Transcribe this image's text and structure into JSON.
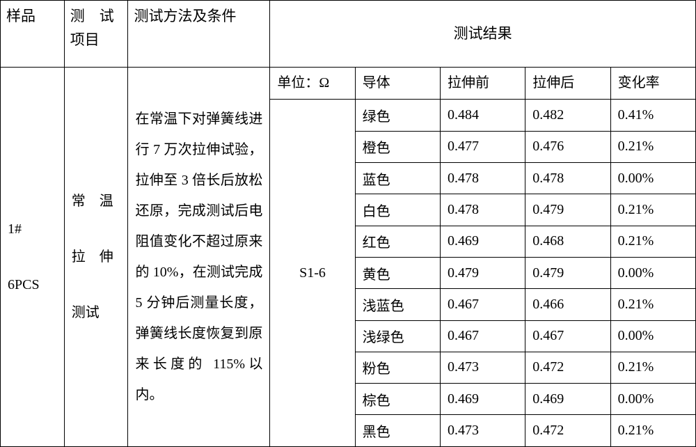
{
  "colors": {
    "border": "#000000",
    "background": "#ffffff",
    "text": "#000000"
  },
  "font": {
    "family": "SimSun",
    "header_size_pt": 16,
    "body_size_pt": 15
  },
  "headers": {
    "sample": "样品",
    "test_item": "测　试项目",
    "method": "测试方法及条件",
    "result": "测试结果"
  },
  "sample": {
    "id": "1#",
    "qty": "6PCS"
  },
  "test_item": {
    "line1": "常　温",
    "line2": "拉　伸",
    "line3": "测试"
  },
  "method_text": "在常温下对弹簧线进行 7 万次拉伸试验，拉伸至 3 倍长后放松还原，完成测试后电阻值变化不超过原来的 10%，在测试完成 5 分钟后测量长度，弹簧线长度恢复到原来长度的 115%以内。",
  "result_subheaders": {
    "unit": "单位：Ω",
    "conductor": "导体",
    "before": "拉伸前",
    "after": "拉伸后",
    "rate": "变化率"
  },
  "result_group": "S1-6",
  "rows": [
    {
      "conductor": "绿色",
      "before": "0.484",
      "after": "0.482",
      "rate": "0.41%"
    },
    {
      "conductor": "橙色",
      "before": "0.477",
      "after": "0.476",
      "rate": "0.21%"
    },
    {
      "conductor": "蓝色",
      "before": "0.478",
      "after": "0.478",
      "rate": "0.00%"
    },
    {
      "conductor": "白色",
      "before": "0.478",
      "after": "0.479",
      "rate": "0.21%"
    },
    {
      "conductor": "红色",
      "before": "0.469",
      "after": "0.468",
      "rate": "0.21%"
    },
    {
      "conductor": "黄色",
      "before": "0.479",
      "after": "0.479",
      "rate": "0.00%"
    },
    {
      "conductor": "浅蓝色",
      "before": "0.467",
      "after": "0.466",
      "rate": "0.21%"
    },
    {
      "conductor": "浅绿色",
      "before": "0.467",
      "after": "0.467",
      "rate": "0.00%"
    },
    {
      "conductor": "粉色",
      "before": "0.473",
      "after": "0.472",
      "rate": "0.21%"
    },
    {
      "conductor": "棕色",
      "before": "0.469",
      "after": "0.469",
      "rate": "0.00%"
    },
    {
      "conductor": "黑色",
      "before": "0.473",
      "after": "0.472",
      "rate": "0.21%"
    }
  ]
}
